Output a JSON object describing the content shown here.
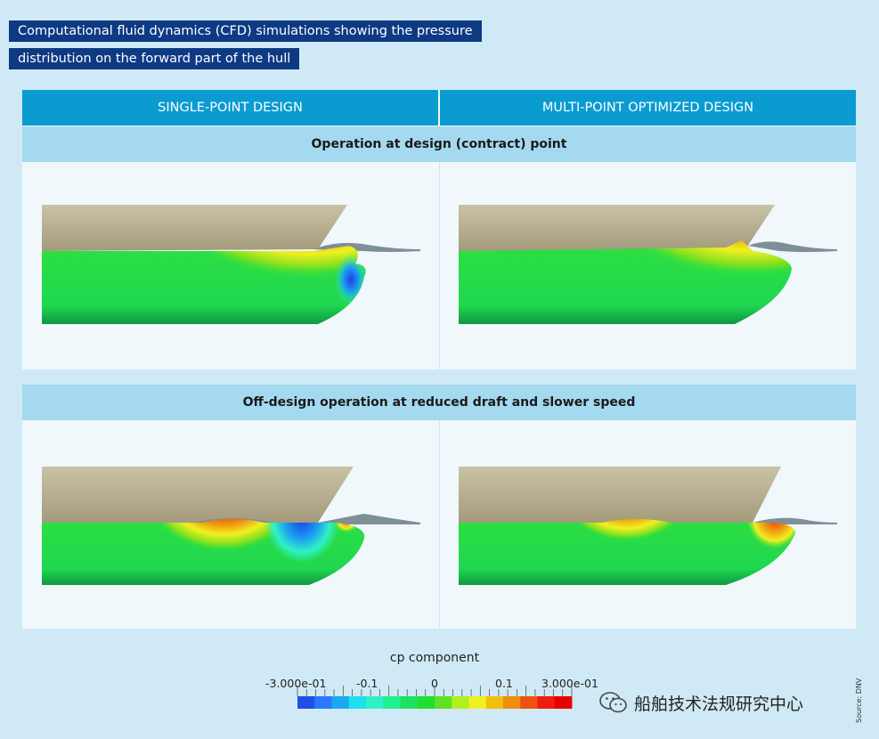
{
  "title": {
    "line1": "Computational fluid dynamics (CFD) simulations showing the pressure",
    "line2": "distribution on the forward part of the hull"
  },
  "columns": {
    "left": "SINGLE-POINT DESIGN",
    "right": "MULTI-POINT OPTIMIZED DESIGN"
  },
  "sections": {
    "design_point": "Operation at design (contract) point",
    "off_design": "Off-design operation at reduced draft and slower speed"
  },
  "legend": {
    "title": "cp component",
    "ticks": [
      "-3.000e-01",
      "-0.1",
      "0",
      "0.1",
      "3.000e-01"
    ],
    "colors": [
      "#1f4fe8",
      "#2a78ff",
      "#1aaaf0",
      "#1ae0f0",
      "#30f0c8",
      "#20f090",
      "#20e060",
      "#1fe030",
      "#60e020",
      "#b0f020",
      "#f0f020",
      "#f0c010",
      "#f08e10",
      "#f05010",
      "#f01c10",
      "#e80000"
    ]
  },
  "watermark": {
    "text": "船舶技术法规研究中心",
    "icon": "wechat-icon"
  },
  "source": "Source: DNV"
}
